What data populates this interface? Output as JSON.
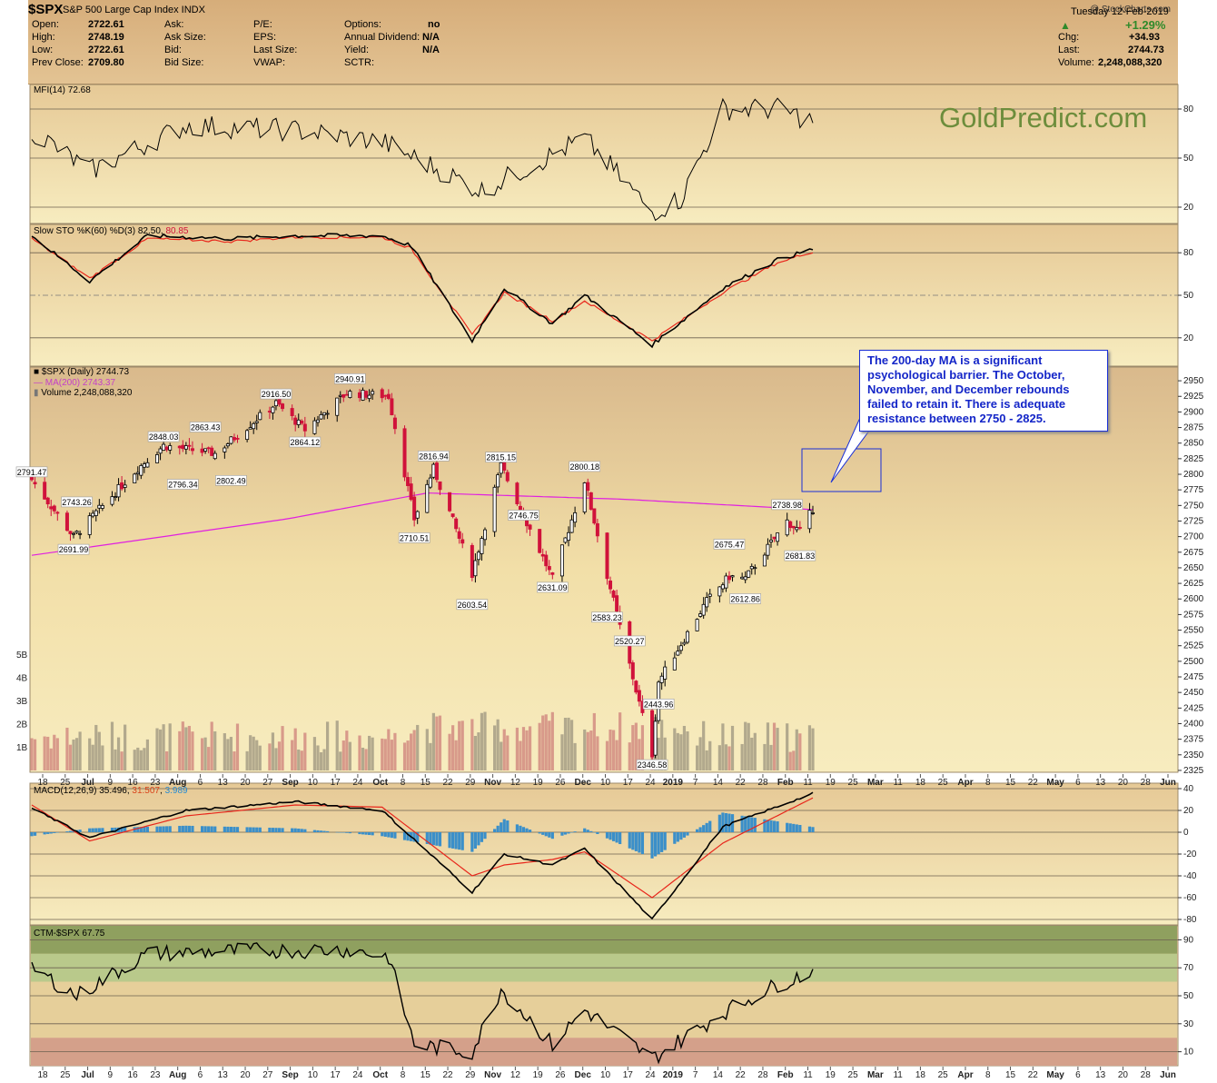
{
  "header": {
    "symbol": "$SPX",
    "description": "S&P 500 Large Cap Index  INDX",
    "source": "@ StockCharts.com",
    "date": "Tuesday  12-Feb-2019",
    "open_label": "Open:",
    "open": "2722.61",
    "high_label": "High:",
    "high": "2748.19",
    "low_label": "Low:",
    "low": "2722.61",
    "prev_label": "Prev Close:",
    "prev": "2709.80",
    "ask_label": "Ask:",
    "asksize_label": "Ask Size:",
    "bid_label": "Bid:",
    "bidsize_label": "Bid Size:",
    "pe_label": "P/E:",
    "eps_label": "EPS:",
    "lastsize_label": "Last Size:",
    "vwap_label": "VWAP:",
    "options_label": "Options:",
    "options": "no",
    "div_label": "Annual Dividend:",
    "div": "N/A",
    "yield_label": "Yield:",
    "yield": "N/A",
    "sctr_label": "SCTR:",
    "pct": "+1.29%",
    "chg_label": "Chg:",
    "chg": "+34.93",
    "last_label": "Last:",
    "last": "2744.73",
    "vol_label": "Volume:",
    "volume": "2,248,088,320",
    "up_color": "#2f8a2a"
  },
  "watermark": "GoldPredict.com",
  "annotation": "The 200-day MA is a  significant psychological barrier. The October, November, and December rebounds failed to retain it. There is adequate resistance between 2750 - 2825.",
  "colors": {
    "panel_bg": "#f2dfa8",
    "up_candle": "#ffffff",
    "down_candle": "#d0123b",
    "ma200": "#e020e0",
    "stochK": "#000000",
    "stochD": "#e8261b",
    "macd": "#000000",
    "signal": "#e8261b",
    "hist": "#3b8fc9",
    "ctm_bands": [
      "#8fa05f",
      "#b9c98b",
      "#e6cf9a",
      "#d4a08a"
    ]
  },
  "chart_data": [
    {
      "type": "line",
      "title": "MFI(14) 72.68",
      "label": "MFI(14)",
      "last": "72.68",
      "y_ticks": [
        80,
        50,
        20
      ],
      "ylim": [
        10,
        95
      ],
      "x": [
        "2018-06-14",
        "2018-07-02",
        "2018-08-01",
        "2018-09-04",
        "2018-10-01",
        "2018-11-01",
        "2018-12-03",
        "2018-12-24",
        "2019-01-02",
        "2019-01-15",
        "2019-02-01",
        "2019-02-12"
      ],
      "series": [
        {
          "values": [
            67,
            42,
            70,
            67,
            60,
            30,
            62,
            17,
            25,
            80,
            80,
            72.68
          ]
        }
      ]
    },
    {
      "type": "line",
      "title": "Slow STO %K(60) %D(3) 82.50, 80.85",
      "label": "Slow STO %K(60) %D(3)",
      "k_last": "82.50",
      "d_last": "80.85",
      "y_ticks": [
        80,
        50,
        20
      ],
      "ylim": [
        0,
        100
      ],
      "x": [
        "2018-06-14",
        "2018-07-02",
        "2018-07-20",
        "2018-08-15",
        "2018-09-04",
        "2018-10-01",
        "2018-10-10",
        "2018-10-29",
        "2018-11-08",
        "2018-11-23",
        "2018-12-03",
        "2018-12-24",
        "2019-01-15",
        "2019-02-01",
        "2019-02-12"
      ],
      "series": [
        {
          "name": "%K",
          "values": [
            92,
            60,
            92,
            90,
            92,
            92,
            85,
            18,
            55,
            30,
            50,
            15,
            55,
            75,
            82.5
          ]
        },
        {
          "name": "%D",
          "values": [
            90,
            62,
            90,
            88,
            91,
            91,
            83,
            22,
            52,
            32,
            46,
            18,
            52,
            73,
            80.85
          ]
        }
      ]
    },
    {
      "type": "candlestick",
      "title": "$SPX (Daily) 2744.73",
      "label": "$SPX (Daily)",
      "last": "2744.73",
      "ma_label": "MA(200) 2743.37",
      "volume_label": "Volume 2,248,088,320",
      "y_ticks": [
        2950,
        2925,
        2900,
        2875,
        2850,
        2825,
        2800,
        2775,
        2750,
        2725,
        2700,
        2675,
        2650,
        2625,
        2600,
        2575,
        2550,
        2525,
        2500,
        2475,
        2450,
        2425,
        2400,
        2375,
        2350,
        2325
      ],
      "volume_ticks": [
        "5B",
        "4B",
        "3B",
        "2B",
        "1B"
      ],
      "ylim": [
        2322,
        2972
      ],
      "price_labels": [
        {
          "date": "2018-06-14",
          "value": "2791.47"
        },
        {
          "date": "2018-06-28",
          "value": "2743.26"
        },
        {
          "date": "2018-06-27",
          "value": "2691.99"
        },
        {
          "date": "2018-07-25",
          "value": "2848.03"
        },
        {
          "date": "2018-07-31",
          "value": "2796.34"
        },
        {
          "date": "2018-08-07",
          "value": "2863.43"
        },
        {
          "date": "2018-08-15",
          "value": "2802.49"
        },
        {
          "date": "2018-08-29",
          "value": "2916.50"
        },
        {
          "date": "2018-09-07",
          "value": "2864.12"
        },
        {
          "date": "2018-09-21",
          "value": "2940.91"
        },
        {
          "date": "2018-10-11",
          "value": "2710.51"
        },
        {
          "date": "2018-10-17",
          "value": "2816.94"
        },
        {
          "date": "2018-10-29",
          "value": "2603.54"
        },
        {
          "date": "2018-11-07",
          "value": "2815.15"
        },
        {
          "date": "2018-11-14",
          "value": "2746.75"
        },
        {
          "date": "2018-11-23",
          "value": "2631.09"
        },
        {
          "date": "2018-12-03",
          "value": "2800.18"
        },
        {
          "date": "2018-12-10",
          "value": "2583.23"
        },
        {
          "date": "2018-12-17",
          "value": "2520.27"
        },
        {
          "date": "2018-12-24",
          "value": "2346.58"
        },
        {
          "date": "2018-12-26",
          "value": "2443.96"
        },
        {
          "date": "2019-01-17",
          "value": "2675.47"
        },
        {
          "date": "2019-01-22",
          "value": "2612.86"
        },
        {
          "date": "2019-02-04",
          "value": "2738.98"
        },
        {
          "date": "2019-02-08",
          "value": "2681.83"
        }
      ],
      "series": [
        {
          "name": "Close",
          "x": [
            "2018-06-14",
            "2018-06-27",
            "2018-07-17",
            "2018-07-25",
            "2018-08-10",
            "2018-08-29",
            "2018-09-07",
            "2018-09-20",
            "2018-10-03",
            "2018-10-11",
            "2018-10-17",
            "2018-10-29",
            "2018-11-07",
            "2018-11-23",
            "2018-12-03",
            "2018-12-10",
            "2018-12-24",
            "2018-12-26",
            "2019-01-10",
            "2019-01-17",
            "2019-01-22",
            "2019-02-04",
            "2019-02-08",
            "2019-02-12"
          ],
          "values": [
            2791.47,
            2699.63,
            2809.55,
            2846.07,
            2833.28,
            2914.04,
            2871.68,
            2930.75,
            2925.51,
            2728.37,
            2809.21,
            2641.25,
            2813.89,
            2632.56,
            2790.37,
            2637.72,
            2351.1,
            2467.7,
            2596.64,
            2635.96,
            2632.9,
            2724.87,
            2707.88,
            2744.73
          ]
        },
        {
          "name": "MA(200)",
          "x": [
            "2018-06-14",
            "2018-09-01",
            "2018-10-15",
            "2018-12-15",
            "2019-02-12"
          ],
          "values": [
            2670,
            2728,
            2770,
            2760,
            2743.37
          ]
        }
      ]
    },
    {
      "type": "line",
      "title": "MACD(12,26,9) 35.496, 31.507, 3.989",
      "label": "MACD(12,26,9)",
      "macd_last": "35.496",
      "signal_last": "31.507",
      "hist_last": "3.989",
      "y_ticks": [
        40,
        20,
        0,
        -20,
        -40,
        -60,
        -80
      ],
      "ylim": [
        -85,
        45
      ],
      "x": [
        "2018-06-14",
        "2018-07-02",
        "2018-08-01",
        "2018-09-04",
        "2018-10-01",
        "2018-10-29",
        "2018-11-08",
        "2018-11-23",
        "2018-12-03",
        "2018-12-24",
        "2019-01-15",
        "2019-02-12"
      ],
      "series": [
        {
          "name": "MACD",
          "values": [
            22,
            -5,
            20,
            28,
            20,
            -55,
            -20,
            -30,
            -15,
            -80,
            5,
            35.496
          ]
        },
        {
          "name": "Signal",
          "values": [
            25,
            -8,
            15,
            25,
            23,
            -40,
            -30,
            -25,
            -18,
            -60,
            -10,
            31.507
          ]
        }
      ]
    },
    {
      "type": "line",
      "title": "CTM-$SPX 67.75",
      "label": "CTM-$SPX",
      "last": "67.75",
      "y_ticks": [
        90,
        70,
        50,
        30,
        10
      ],
      "ylim": [
        0,
        100
      ],
      "x": [
        "2018-06-14",
        "2018-06-28",
        "2018-07-20",
        "2018-08-15",
        "2018-09-20",
        "2018-10-03",
        "2018-10-11",
        "2018-10-29",
        "2018-11-07",
        "2018-11-23",
        "2018-12-03",
        "2018-12-24",
        "2019-01-15",
        "2019-02-01",
        "2019-02-12"
      ],
      "series": [
        {
          "values": [
            70,
            50,
            80,
            82,
            83,
            78,
            15,
            10,
            55,
            15,
            40,
            5,
            38,
            58,
            67.75
          ]
        }
      ]
    }
  ],
  "x_axis": {
    "labels": [
      "18",
      "25",
      "Jul",
      "9",
      "16",
      "23",
      "Aug",
      "6",
      "13",
      "20",
      "27",
      "Sep",
      "10",
      "17",
      "24",
      "Oct",
      "8",
      "15",
      "22",
      "29",
      "Nov",
      "12",
      "19",
      "26",
      "Dec",
      "10",
      "17",
      "24",
      "2019",
      "7",
      "14",
      "22",
      "28",
      "Feb",
      "11",
      "19",
      "25",
      "Mar",
      "11",
      "18",
      "25",
      "Apr",
      "8",
      "15",
      "22",
      "May",
      "6",
      "13",
      "20",
      "28",
      "Jun"
    ]
  }
}
